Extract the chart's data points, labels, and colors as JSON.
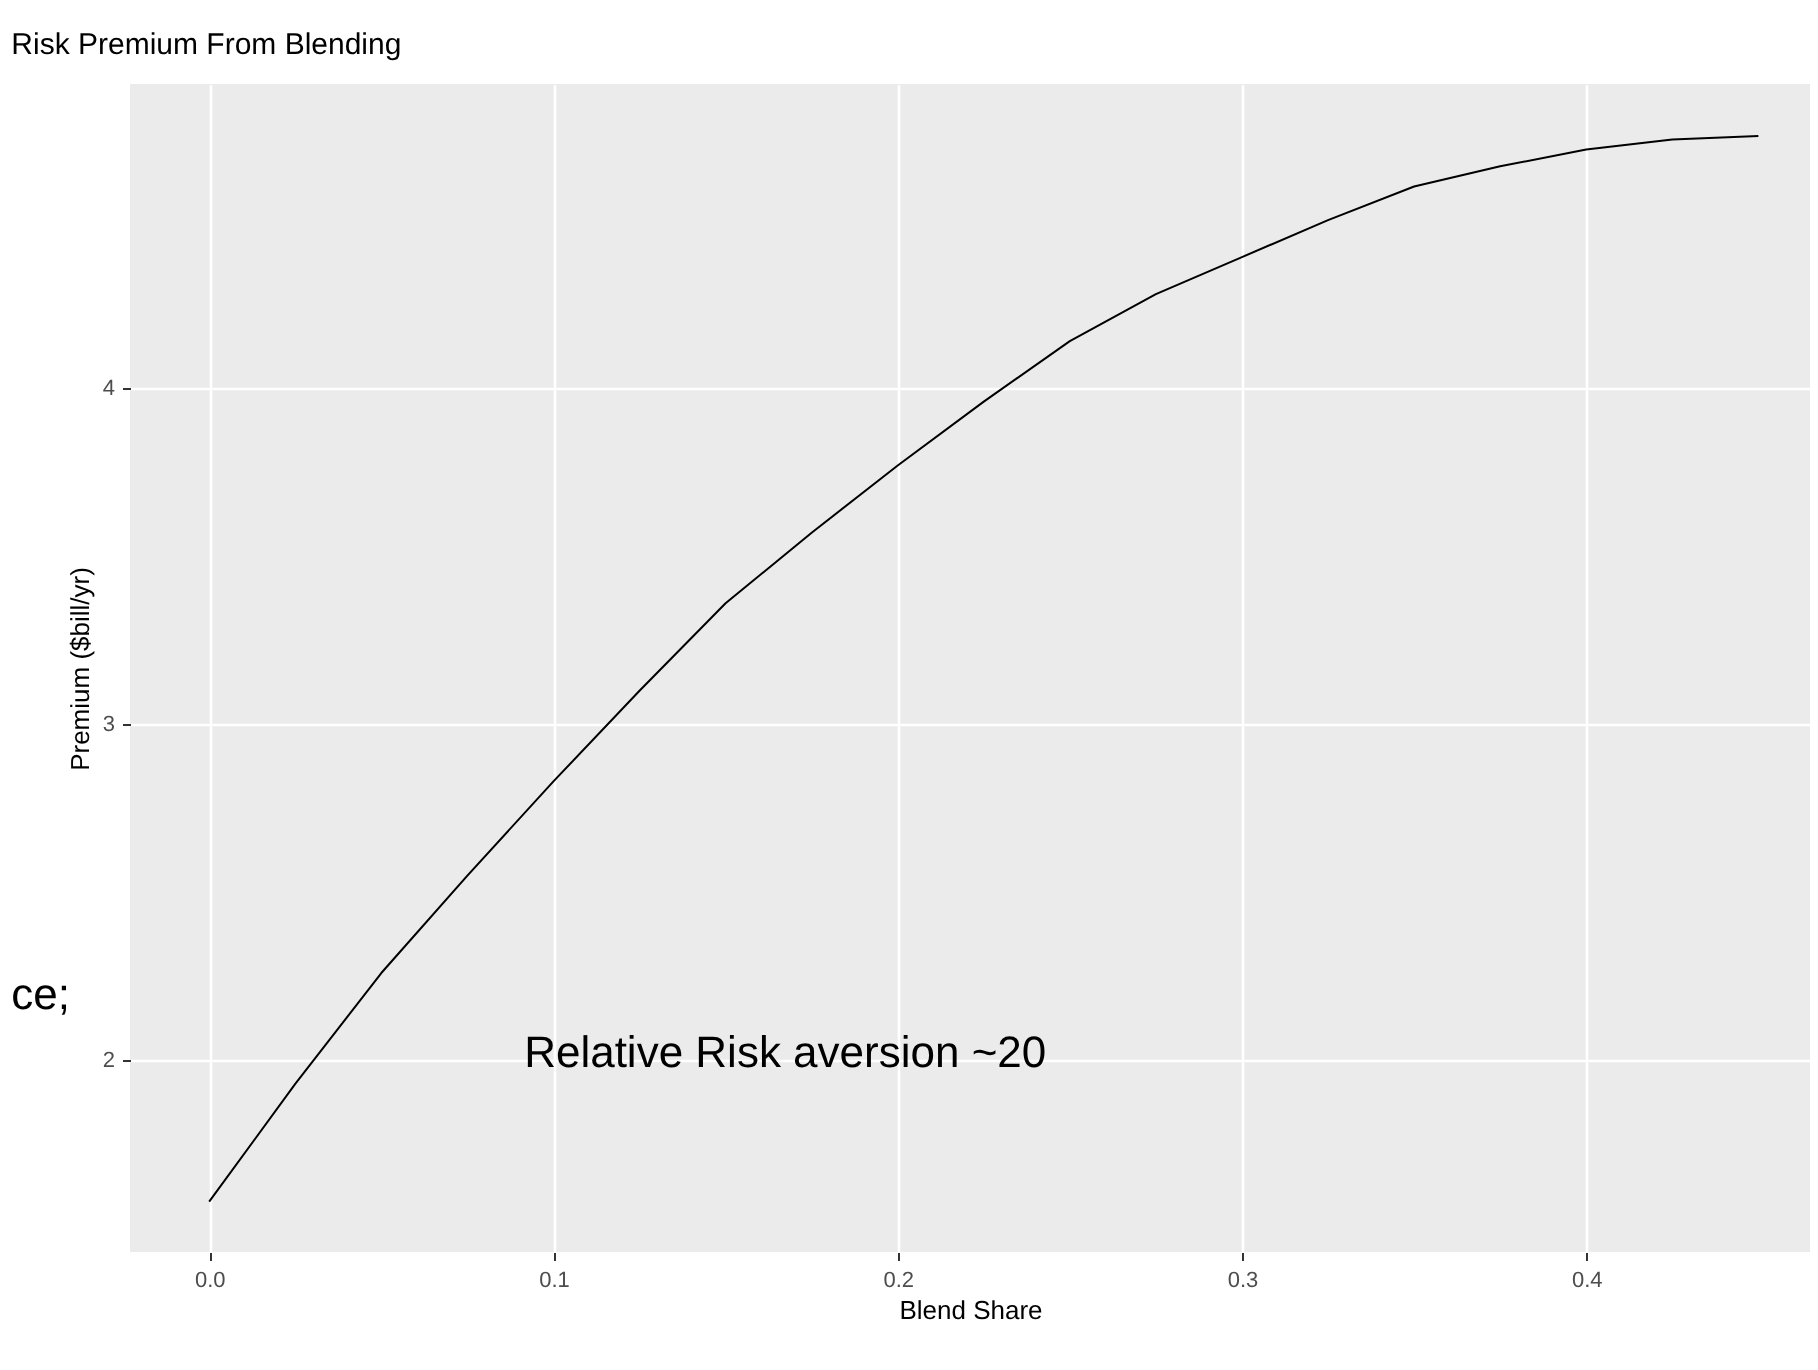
{
  "chart_data": {
    "type": "line",
    "title": "Risk Premium From Blending",
    "xlabel": "Blend Share",
    "ylabel": "Premium ($bill/yr)",
    "x": [
      0,
      0.025,
      0.05,
      0.075,
      0.1,
      0.125,
      0.15,
      0.175,
      0.2,
      0.225,
      0.25,
      0.275,
      0.3,
      0.325,
      0.35,
      0.375,
      0.4,
      0.425,
      0.45
    ],
    "series": [
      {
        "color": "#000000",
        "values": [
          1.58,
          1.93,
          2.26,
          2.55,
          2.83,
          3.1,
          3.36,
          3.57,
          3.77,
          3.96,
          4.14,
          4.28,
          4.39,
          4.5,
          4.6,
          4.66,
          4.71,
          4.74,
          4.75
        ]
      }
    ],
    "xlim": [
      -0.023,
      0.465
    ],
    "ylim": [
      1.43,
      4.905
    ],
    "xticks": [
      {
        "value": 0,
        "label": "0.0"
      },
      0.1,
      0.2,
      0.3,
      0.4
    ],
    "yticks": [
      2,
      3,
      4
    ],
    "grid": true,
    "marker": "none",
    "line_style": "solid",
    "annotations": [
      "Relative Risk aversion ~20",
      "ce;"
    ]
  }
}
